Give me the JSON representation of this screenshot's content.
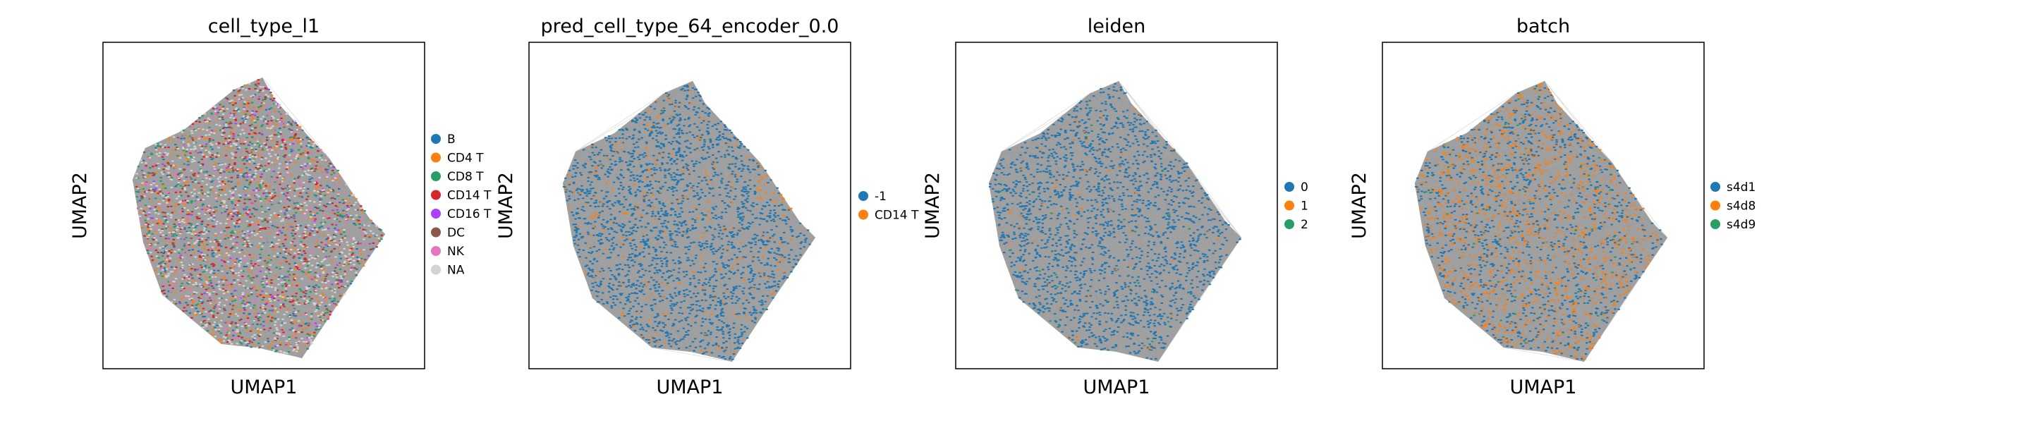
{
  "chart_data": [
    {
      "type": "scatter",
      "title": "cell_type_l1",
      "xlabel": "UMAP1",
      "ylabel": "UMAP2",
      "grid": false,
      "legend_position": "right",
      "categories": [
        {
          "name": "B",
          "color": "#1f77b4"
        },
        {
          "name": "CD4 T",
          "color": "#ff7f0e"
        },
        {
          "name": "CD8 T",
          "color": "#279e68"
        },
        {
          "name": "CD14 T",
          "color": "#d62728"
        },
        {
          "name": "CD16 T",
          "color": "#aa40fc"
        },
        {
          "name": "DC",
          "color": "#8c564b"
        },
        {
          "name": "NK",
          "color": "#e377c2"
        },
        {
          "name": "NA",
          "color": "#d3d3d3"
        }
      ]
    },
    {
      "type": "scatter",
      "title": "pred_cell_type_64_encoder_0.0",
      "xlabel": "UMAP1",
      "ylabel": "UMAP2",
      "grid": false,
      "legend_position": "right",
      "categories": [
        {
          "name": "-1",
          "color": "#1f77b4"
        },
        {
          "name": "CD14 T",
          "color": "#ff7f0e"
        }
      ]
    },
    {
      "type": "scatter",
      "title": "leiden",
      "xlabel": "UMAP1",
      "ylabel": "UMAP2",
      "grid": false,
      "legend_position": "right",
      "categories": [
        {
          "name": "0",
          "color": "#1f77b4"
        },
        {
          "name": "1",
          "color": "#ff7f0e"
        },
        {
          "name": "2",
          "color": "#279e68"
        }
      ]
    },
    {
      "type": "scatter",
      "title": "batch",
      "xlabel": "UMAP1",
      "ylabel": "UMAP2",
      "grid": false,
      "legend_position": "right",
      "categories": [
        {
          "name": "s4d1",
          "color": "#1f77b4"
        },
        {
          "name": "s4d8",
          "color": "#ff7f0e"
        },
        {
          "name": "s4d9",
          "color": "#279e68"
        }
      ]
    }
  ]
}
